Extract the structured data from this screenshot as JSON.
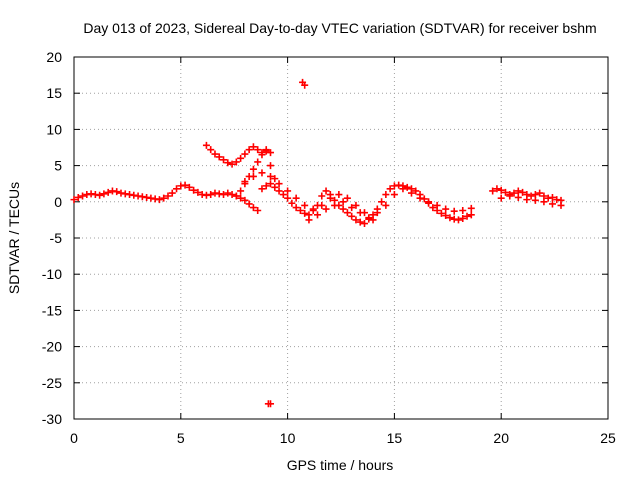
{
  "chart_data": {
    "type": "scatter",
    "title": "Day 013 of 2023, Sidereal Day-to-day VTEC variation (SDTVAR) for receiver bshm",
    "xlabel": "GPS time / hours",
    "ylabel": "SDTVAR / TECUs",
    "xlim": [
      0,
      25
    ],
    "ylim": [
      -30,
      20
    ],
    "xticks": [
      0,
      5,
      10,
      15,
      20,
      25
    ],
    "yticks": [
      20,
      15,
      10,
      5,
      0,
      -5,
      -10,
      -15,
      -20,
      -25,
      -30
    ],
    "grid": true,
    "marker": "+",
    "color": "#ff0000",
    "series": [
      {
        "name": "SDTVAR",
        "x": [
          0.0,
          0.2,
          0.4,
          0.6,
          0.8,
          1.0,
          1.2,
          1.4,
          1.6,
          1.8,
          2.0,
          2.2,
          2.4,
          2.6,
          2.8,
          3.0,
          3.2,
          3.4,
          3.6,
          3.8,
          4.0,
          4.2,
          4.4,
          4.6,
          4.8,
          5.0,
          5.2,
          5.4,
          5.6,
          5.8,
          6.0,
          6.2,
          6.4,
          6.6,
          6.8,
          7.0,
          7.2,
          7.4,
          7.6,
          7.8,
          8.0,
          8.2,
          8.4,
          8.6,
          8.8,
          9.0,
          9.2,
          9.4,
          9.6,
          9.8,
          10.0,
          10.2,
          10.4,
          10.6,
          10.8,
          11.0,
          11.2,
          11.4,
          11.6,
          11.8,
          12.0,
          12.2,
          12.4,
          12.6,
          12.8,
          13.0,
          13.2,
          13.4,
          13.6,
          13.8,
          14.0,
          14.2,
          14.4,
          14.6,
          14.8,
          15.0,
          15.2,
          15.4,
          15.6,
          15.8,
          16.0,
          16.2,
          16.4,
          16.6,
          16.8,
          17.0,
          17.2,
          17.4,
          17.6,
          17.8,
          18.0,
          18.2,
          18.4,
          18.6,
          6.2,
          6.4,
          6.6,
          6.8,
          7.0,
          7.2,
          7.4,
          7.6,
          7.8,
          8.0,
          8.2,
          8.4,
          8.6,
          8.8,
          9.0,
          9.2,
          7.6,
          7.8,
          8.0,
          8.2,
          8.4,
          8.6,
          8.8,
          9.0,
          9.2,
          9.4,
          11.0,
          11.4,
          11.8,
          12.2,
          12.6,
          13.0,
          13.4,
          13.8,
          14.2,
          14.6,
          15.0,
          15.4,
          15.8,
          16.2,
          16.6,
          17.0,
          17.4,
          17.8,
          18.2,
          18.6,
          8.0,
          8.4,
          8.8,
          9.2,
          9.6,
          10.0,
          10.4,
          10.8,
          11.2,
          11.6,
          12.0,
          12.4,
          12.8,
          13.2,
          13.6,
          14.0,
          19.6,
          19.8,
          20.0,
          20.2,
          20.4,
          20.6,
          20.8,
          21.0,
          21.2,
          21.4,
          21.6,
          21.8,
          22.0,
          22.2,
          22.4,
          22.6,
          22.8,
          20.0,
          20.4,
          20.8,
          21.2,
          21.6,
          22.0,
          22.4,
          22.8,
          10.7,
          10.8,
          9.1,
          9.2
        ],
        "y": [
          0.3,
          0.6,
          0.8,
          1.0,
          1.1,
          1.0,
          0.9,
          1.1,
          1.3,
          1.5,
          1.4,
          1.2,
          1.1,
          1.0,
          0.9,
          0.8,
          0.7,
          0.6,
          0.5,
          0.4,
          0.3,
          0.5,
          0.8,
          1.2,
          1.8,
          2.2,
          2.3,
          2.0,
          1.6,
          1.3,
          1.0,
          0.9,
          1.0,
          1.2,
          1.1,
          1.0,
          1.2,
          1.0,
          0.8,
          0.5,
          0.2,
          -0.3,
          -0.8,
          -1.2,
          1.8,
          2.2,
          2.5,
          2.0,
          1.5,
          1.0,
          0.5,
          -0.2,
          -0.8,
          -1.2,
          -1.6,
          -1.8,
          -1.2,
          -0.5,
          0.8,
          1.5,
          1.0,
          0.2,
          -0.5,
          -1.0,
          -1.5,
          -2.0,
          -2.5,
          -2.8,
          -3.0,
          -2.4,
          -1.8,
          -1.0,
          0.0,
          1.0,
          1.8,
          2.2,
          2.3,
          2.2,
          2.0,
          1.8,
          1.5,
          1.0,
          0.4,
          -0.2,
          -0.8,
          -1.2,
          -1.6,
          -1.9,
          -2.2,
          -2.4,
          -2.5,
          -2.3,
          -2.0,
          -1.8,
          7.8,
          7.2,
          6.6,
          6.2,
          5.8,
          5.4,
          5.2,
          5.5,
          6.0,
          6.6,
          7.2,
          7.6,
          7.2,
          6.8,
          7.0,
          6.8,
          0.8,
          1.5,
          2.5,
          3.5,
          4.5,
          5.5,
          6.5,
          7.2,
          5.0,
          3.2,
          -2.5,
          -1.8,
          -1.0,
          -0.5,
          0.0,
          -0.8,
          -1.5,
          -2.2,
          -1.5,
          -0.5,
          1.0,
          1.8,
          1.2,
          0.5,
          0.0,
          -0.5,
          -1.0,
          -1.3,
          -1.2,
          -0.9,
          2.8,
          3.5,
          4.0,
          3.5,
          2.5,
          1.5,
          0.5,
          -0.5,
          -1.0,
          -0.5,
          0.5,
          1.0,
          0.5,
          -0.5,
          -1.5,
          -2.5,
          1.5,
          1.8,
          1.6,
          1.3,
          1.0,
          1.2,
          1.5,
          1.3,
          1.0,
          0.8,
          1.0,
          1.2,
          0.8,
          0.5,
          0.6,
          0.3,
          0.2,
          0.5,
          0.8,
          0.6,
          0.3,
          0.2,
          0.0,
          -0.3,
          -0.5,
          16.5,
          16.1,
          -27.9,
          -27.9
        ]
      }
    ]
  }
}
